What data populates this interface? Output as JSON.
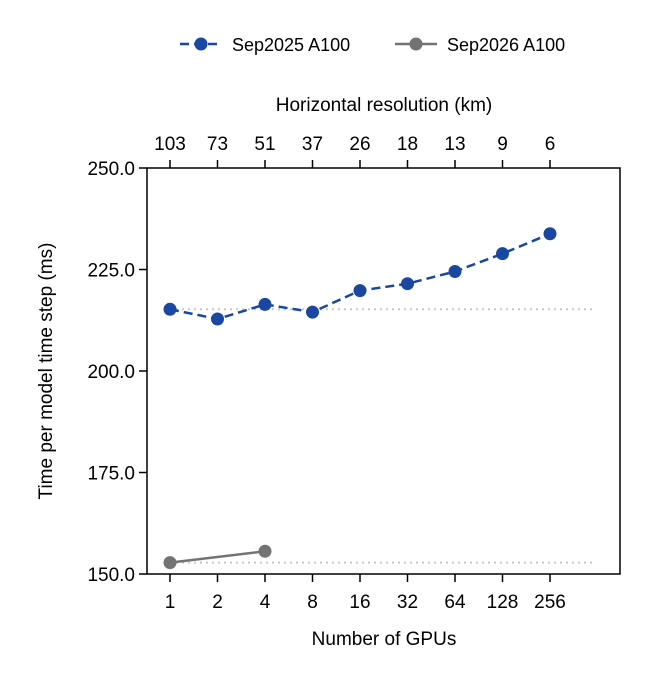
{
  "chart_data": {
    "type": "line",
    "xlabel": "Number of GPUs",
    "top_xlabel": "Horizontal resolution (km)",
    "ylabel": "Time per model time step (ms)",
    "x_categories": [
      "1",
      "2",
      "4",
      "8",
      "16",
      "32",
      "64",
      "128",
      "256"
    ],
    "top_x_categories": [
      "103",
      "73",
      "51",
      "37",
      "26",
      "18",
      "13",
      "9",
      "6"
    ],
    "yticks": [
      "150.0",
      "175.0",
      "200.0",
      "225.0",
      "250.0"
    ],
    "ylim": [
      150,
      250
    ],
    "x_scale": "log2",
    "grid": false,
    "legend_position": "top-center",
    "series": [
      {
        "name": "Sep2025 A100",
        "color": "#1a47a0",
        "line_style": "dashed",
        "x": [
          1,
          2,
          4,
          8,
          16,
          32,
          64,
          128,
          256
        ],
        "values": [
          215.2,
          212.8,
          216.4,
          214.5,
          219.8,
          221.5,
          224.5,
          228.9,
          233.8
        ],
        "baseline": 215.2
      },
      {
        "name": "Sep2026 A100",
        "color": "#737373",
        "line_style": "solid",
        "x": [
          1,
          4
        ],
        "values": [
          152.8,
          155.6
        ],
        "baseline": 152.8
      }
    ]
  }
}
